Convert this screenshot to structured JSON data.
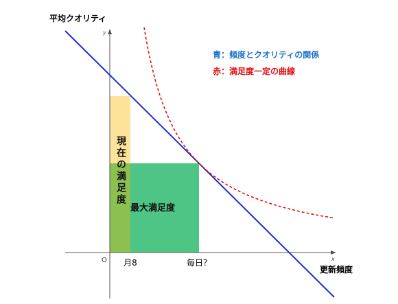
{
  "diagram": {
    "y_axis_title": "平均クオリティ",
    "y_axis_symbol": "y",
    "x_axis_symbol": "x",
    "origin_label": "O",
    "x_labels": [
      "月8",
      "毎日？"
    ],
    "x_axis_title": "更新頻度",
    "legend": [
      "青：頻度とクオリティの関係",
      "赤：満足度一定の曲線"
    ],
    "current_satisfaction": "現在の満足度",
    "max_satisfaction": "最大満足度"
  }
}
